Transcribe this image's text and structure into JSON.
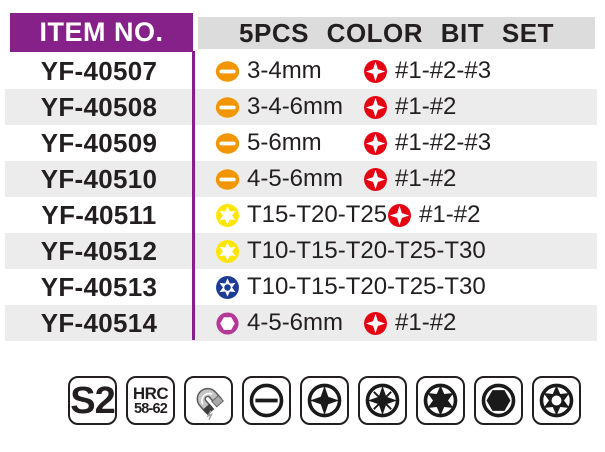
{
  "header": {
    "item_col": "ITEM NO.",
    "title": "5PCS COLOR BIT SET"
  },
  "rows": [
    {
      "item": "YF-40507",
      "specs": [
        {
          "icon": "slotted-orange",
          "text": "3-4mm"
        },
        {
          "icon": "phillips-red",
          "text": "#1-#2-#3"
        }
      ]
    },
    {
      "item": "YF-40508",
      "specs": [
        {
          "icon": "slotted-orange",
          "text": "3-4-6mm"
        },
        {
          "icon": "phillips-red",
          "text": "#1-#2"
        }
      ]
    },
    {
      "item": "YF-40509",
      "specs": [
        {
          "icon": "slotted-orange",
          "text": "5-6mm"
        },
        {
          "icon": "phillips-red",
          "text": "#1-#2-#3"
        }
      ]
    },
    {
      "item": "YF-40510",
      "specs": [
        {
          "icon": "slotted-orange",
          "text": "4-5-6mm"
        },
        {
          "icon": "phillips-red",
          "text": "#1-#2"
        }
      ]
    },
    {
      "item": "YF-40511",
      "specs": [
        {
          "icon": "torx-yellow",
          "text": "T15-T20-T25"
        },
        {
          "icon": "phillips-red",
          "text": "#1-#2"
        }
      ]
    },
    {
      "item": "YF-40512",
      "specs": [
        {
          "icon": "torx-yellow",
          "text": "T10-T15-T20-T25-T30"
        }
      ]
    },
    {
      "item": "YF-40513",
      "specs": [
        {
          "icon": "security-torx-blue",
          "text": "T10-T15-T20-T25-T30"
        }
      ]
    },
    {
      "item": "YF-40514",
      "specs": [
        {
          "icon": "hex-magenta",
          "text": "4-5-6mm"
        },
        {
          "icon": "phillips-red",
          "text": "#1-#2"
        }
      ]
    }
  ],
  "footer": {
    "badges": [
      {
        "icon": "s2-steel-badge",
        "text": "S2"
      },
      {
        "icon": "hrc-hardness-badge",
        "text": "HRC",
        "subtext": "58-62"
      },
      {
        "icon": "magnetic-icon"
      },
      {
        "icon": "slotted-bit-icon"
      },
      {
        "icon": "phillips-bit-icon"
      },
      {
        "icon": "pozidriv-bit-icon"
      },
      {
        "icon": "torx-bit-icon"
      },
      {
        "icon": "hex-bit-icon"
      },
      {
        "icon": "security-torx-bit-icon"
      }
    ]
  },
  "colors": {
    "purple": "#87218A",
    "header_gray": "#DCDCDC",
    "row_gray": "#ECECEC",
    "orange": "#F29600",
    "red": "#E60012",
    "yellow": "#FFE600",
    "blue": "#1E3C96",
    "magenta": "#B43897",
    "ink": "#231F20"
  }
}
